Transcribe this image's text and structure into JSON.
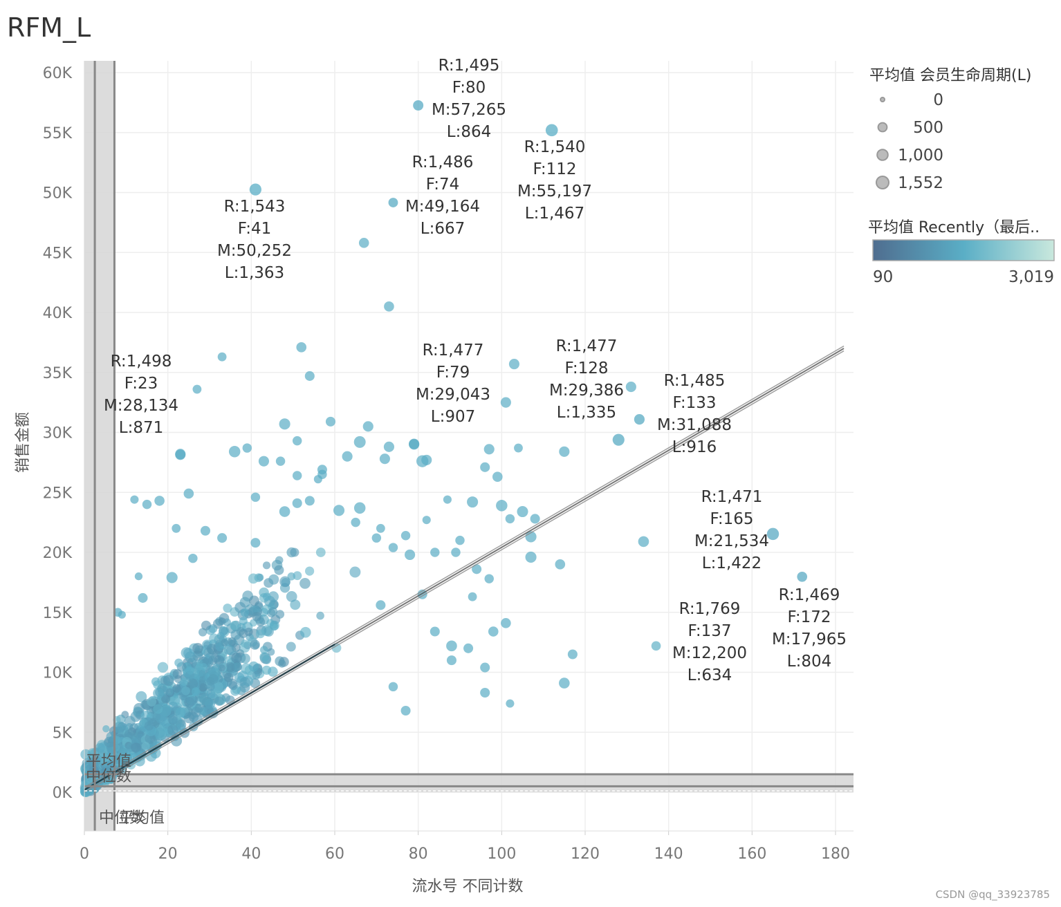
{
  "page": {
    "title": "RFM_L"
  },
  "chart_data": {
    "type": "scatter",
    "title": "RFM_L",
    "xlabel": "流水号 不同计数",
    "ylabel": "销售金额",
    "xlim": [
      0,
      182
    ],
    "ylim": [
      -3200,
      61000
    ],
    "x_ticks": [
      0,
      20,
      40,
      60,
      80,
      100,
      120,
      140,
      160,
      180
    ],
    "x_tick_labels": [
      "0",
      "20",
      "40",
      "60",
      "80",
      "100",
      "120",
      "140",
      "160",
      "180"
    ],
    "y_ticks": [
      0,
      5000,
      10000,
      15000,
      20000,
      25000,
      30000,
      35000,
      40000,
      45000,
      50000,
      55000,
      60000
    ],
    "y_tick_labels": [
      "0K",
      "5K",
      "10K",
      "15K",
      "20K",
      "25K",
      "30K",
      "35K",
      "40K",
      "45K",
      "50K",
      "55K",
      "60K"
    ],
    "color": "#4aa3bd",
    "size_legend": {
      "title": "平均值 会员生命周期(L)",
      "items": [
        {
          "label": "0",
          "value": 0
        },
        {
          "label": "500",
          "value": 500
        },
        {
          "label": "1,000",
          "value": 1000
        },
        {
          "label": "1,552",
          "value": 1552
        }
      ]
    },
    "color_legend": {
      "title": "平均值 Recently（最后..",
      "min_label": "90",
      "max_label": "3,019",
      "min": 90,
      "max": 3019,
      "color_start": "#4f6d8f",
      "color_mid": "#5aaec6",
      "color_end": "#c9e8dd"
    },
    "trend_line": {
      "start": [
        0,
        200
      ],
      "end": [
        182,
        37000
      ]
    },
    "reference_lines": {
      "x_mean": 7.2,
      "x_median": 2.5,
      "x_band": [
        0,
        7.2
      ],
      "y_mean": 1500,
      "y_median": 500,
      "y_band": [
        0,
        1500
      ],
      "x_labels": [
        "中位数",
        "平均值"
      ],
      "y_labels": [
        "平均值",
        "中位数"
      ]
    },
    "labeled_points": [
      {
        "x": 80,
        "y": 57265,
        "R": 1495,
        "F": 80,
        "M": 57265,
        "L": 864,
        "recently": 1495,
        "lines": [
          "R:1,495",
          "F:80",
          "M:57,265",
          "L:864"
        ]
      },
      {
        "x": 112,
        "y": 55197,
        "R": 1540,
        "F": 112,
        "M": 55197,
        "L": 1467,
        "recently": 1540,
        "lines": [
          "R:1,540",
          "F:112",
          "M:55,197",
          "L:1,467"
        ]
      },
      {
        "x": 74,
        "y": 49164,
        "R": 1486,
        "F": 74,
        "M": 49164,
        "L": 667,
        "recently": 1486,
        "lines": [
          "R:1,486",
          "F:74",
          "M:49,164",
          "L:667"
        ]
      },
      {
        "x": 41,
        "y": 50252,
        "R": 1543,
        "F": 41,
        "M": 50252,
        "L": 1363,
        "recently": 1543,
        "lines": [
          "R:1,543",
          "F:41",
          "M:50,252",
          "L:1,363"
        ]
      },
      {
        "x": 23,
        "y": 28134,
        "R": 1498,
        "F": 23,
        "M": 28134,
        "L": 871,
        "recently": 1498,
        "lines": [
          "R:1,498",
          "F:23",
          "M:28,134",
          "L:871"
        ]
      },
      {
        "x": 79,
        "y": 29043,
        "R": 1477,
        "F": 79,
        "M": 29043,
        "L": 907,
        "recently": 1477,
        "lines": [
          "R:1,477",
          "F:79",
          "M:29,043",
          "L:907"
        ]
      },
      {
        "x": 128,
        "y": 29386,
        "R": 1477,
        "F": 128,
        "M": 29386,
        "L": 1335,
        "recently": 1477,
        "lines": [
          "R:1,477",
          "F:128",
          "M:29,386",
          "L:1,335"
        ]
      },
      {
        "x": 133,
        "y": 31088,
        "R": 1485,
        "F": 133,
        "M": 31088,
        "L": 916,
        "recently": 1485,
        "lines": [
          "R:1,485",
          "F:133",
          "M:31,088",
          "L:916"
        ]
      },
      {
        "x": 165,
        "y": 21534,
        "R": 1471,
        "F": 165,
        "M": 21534,
        "L": 1422,
        "recently": 1471,
        "lines": [
          "R:1,471",
          "F:165",
          "M:21,534",
          "L:1,422"
        ]
      },
      {
        "x": 137,
        "y": 12200,
        "R": 1769,
        "F": 137,
        "M": 12200,
        "L": 634,
        "recently": 1769,
        "lines": [
          "R:1,769",
          "F:137",
          "M:12,200",
          "L:634"
        ]
      },
      {
        "x": 172,
        "y": 17965,
        "R": 1469,
        "F": 172,
        "M": 17965,
        "L": 804,
        "recently": 1469,
        "lines": [
          "R:1,469",
          "F:172",
          "M:17,965",
          "L:804"
        ]
      }
    ],
    "points": [
      {
        "x": 67,
        "y": 45800,
        "L": 800,
        "recently": 1500
      },
      {
        "x": 73,
        "y": 40500,
        "L": 800,
        "recently": 1500
      },
      {
        "x": 52,
        "y": 37100,
        "L": 800,
        "recently": 1500
      },
      {
        "x": 33,
        "y": 36300,
        "L": 500,
        "recently": 1500
      },
      {
        "x": 54,
        "y": 34700,
        "L": 700,
        "recently": 1500
      },
      {
        "x": 27,
        "y": 33600,
        "L": 500,
        "recently": 1500
      },
      {
        "x": 103,
        "y": 35700,
        "L": 900,
        "recently": 1500
      },
      {
        "x": 101,
        "y": 32500,
        "L": 900,
        "recently": 1500
      },
      {
        "x": 131,
        "y": 33800,
        "L": 900,
        "recently": 1500
      },
      {
        "x": 59,
        "y": 30900,
        "L": 700,
        "recently": 1500
      },
      {
        "x": 68,
        "y": 30500,
        "L": 900,
        "recently": 1500
      },
      {
        "x": 48,
        "y": 30700,
        "L": 1100,
        "recently": 1500
      },
      {
        "x": 51,
        "y": 29300,
        "L": 600,
        "recently": 1500
      },
      {
        "x": 66,
        "y": 29200,
        "L": 1300,
        "recently": 1500
      },
      {
        "x": 73,
        "y": 28800,
        "L": 900,
        "recently": 1500
      },
      {
        "x": 79,
        "y": 29000,
        "L": 900,
        "recently": 1500
      },
      {
        "x": 39,
        "y": 28700,
        "L": 600,
        "recently": 1500
      },
      {
        "x": 36,
        "y": 28400,
        "L": 1200,
        "recently": 1500
      },
      {
        "x": 23,
        "y": 28200,
        "L": 900,
        "recently": 1500
      },
      {
        "x": 97,
        "y": 28600,
        "L": 900,
        "recently": 1500
      },
      {
        "x": 104,
        "y": 28700,
        "L": 500,
        "recently": 1500
      },
      {
        "x": 115,
        "y": 28400,
        "L": 900,
        "recently": 1500
      },
      {
        "x": 63,
        "y": 28000,
        "L": 900,
        "recently": 1500
      },
      {
        "x": 72,
        "y": 27800,
        "L": 900,
        "recently": 1500
      },
      {
        "x": 81,
        "y": 27600,
        "L": 1400,
        "recently": 1500
      },
      {
        "x": 82,
        "y": 27700,
        "L": 900,
        "recently": 1500
      },
      {
        "x": 43,
        "y": 27600,
        "L": 900,
        "recently": 1500
      },
      {
        "x": 47,
        "y": 27600,
        "L": 600,
        "recently": 1500
      },
      {
        "x": 57,
        "y": 26900,
        "L": 700,
        "recently": 1500
      },
      {
        "x": 57,
        "y": 26500,
        "L": 600,
        "recently": 1500
      },
      {
        "x": 51,
        "y": 26400,
        "L": 600,
        "recently": 1500
      },
      {
        "x": 56,
        "y": 26100,
        "L": 400,
        "recently": 1500
      },
      {
        "x": 96,
        "y": 27100,
        "L": 700,
        "recently": 1500
      },
      {
        "x": 99,
        "y": 26300,
        "L": 800,
        "recently": 1500
      },
      {
        "x": 41,
        "y": 24600,
        "L": 600,
        "recently": 1500
      },
      {
        "x": 25,
        "y": 24900,
        "L": 800,
        "recently": 1500
      },
      {
        "x": 18,
        "y": 24300,
        "L": 800,
        "recently": 1500
      },
      {
        "x": 15,
        "y": 24000,
        "L": 600,
        "recently": 1500
      },
      {
        "x": 12,
        "y": 24400,
        "L": 400,
        "recently": 1500
      },
      {
        "x": 87,
        "y": 24400,
        "L": 400,
        "recently": 1500
      },
      {
        "x": 93,
        "y": 24200,
        "L": 1100,
        "recently": 1500
      },
      {
        "x": 100,
        "y": 23900,
        "L": 1200,
        "recently": 1500
      },
      {
        "x": 105,
        "y": 23400,
        "L": 1100,
        "recently": 1500
      },
      {
        "x": 102,
        "y": 22800,
        "L": 600,
        "recently": 1500
      },
      {
        "x": 108,
        "y": 22800,
        "L": 700,
        "recently": 1500
      },
      {
        "x": 54,
        "y": 24300,
        "L": 700,
        "recently": 1500
      },
      {
        "x": 51,
        "y": 24100,
        "L": 700,
        "recently": 1500
      },
      {
        "x": 48,
        "y": 23400,
        "L": 1000,
        "recently": 1500
      },
      {
        "x": 61,
        "y": 23500,
        "L": 1100,
        "recently": 1500
      },
      {
        "x": 66,
        "y": 23700,
        "L": 1200,
        "recently": 1500
      },
      {
        "x": 65,
        "y": 22500,
        "L": 600,
        "recently": 1500
      },
      {
        "x": 107,
        "y": 21300,
        "L": 1100,
        "recently": 1500
      },
      {
        "x": 107,
        "y": 19600,
        "L": 1100,
        "recently": 1500
      },
      {
        "x": 134,
        "y": 20900,
        "L": 1000,
        "recently": 1500
      },
      {
        "x": 114,
        "y": 19000,
        "L": 800,
        "recently": 1500
      },
      {
        "x": 94,
        "y": 18600,
        "L": 700,
        "recently": 1500
      },
      {
        "x": 97,
        "y": 17800,
        "L": 600,
        "recently": 1500
      },
      {
        "x": 81,
        "y": 16500,
        "L": 700,
        "recently": 1500
      },
      {
        "x": 93,
        "y": 16300,
        "L": 500,
        "recently": 1500
      },
      {
        "x": 117,
        "y": 11500,
        "L": 700,
        "recently": 1500
      },
      {
        "x": 115,
        "y": 9100,
        "L": 1000,
        "recently": 1500
      },
      {
        "x": 102,
        "y": 7400,
        "L": 400,
        "recently": 1500
      },
      {
        "x": 96,
        "y": 10400,
        "L": 700,
        "recently": 1500
      },
      {
        "x": 96,
        "y": 8300,
        "L": 700,
        "recently": 1500
      },
      {
        "x": 101,
        "y": 14100,
        "L": 800,
        "recently": 1500
      },
      {
        "x": 98,
        "y": 13400,
        "L": 800,
        "recently": 1500
      },
      {
        "x": 92,
        "y": 12000,
        "L": 700,
        "recently": 1500
      },
      {
        "x": 88,
        "y": 12200,
        "L": 1000,
        "recently": 1500
      },
      {
        "x": 84,
        "y": 13400,
        "L": 700,
        "recently": 1500
      },
      {
        "x": 88,
        "y": 11000,
        "L": 700,
        "recently": 1500
      },
      {
        "x": 77,
        "y": 6800,
        "L": 700,
        "recently": 1500
      },
      {
        "x": 74,
        "y": 8800,
        "L": 600,
        "recently": 1500
      },
      {
        "x": 71,
        "y": 15600,
        "L": 700,
        "recently": 1500
      },
      {
        "x": 78,
        "y": 19800,
        "L": 900,
        "recently": 1500
      },
      {
        "x": 84,
        "y": 20000,
        "L": 600,
        "recently": 1500
      },
      {
        "x": 89,
        "y": 20000,
        "L": 600,
        "recently": 1500
      },
      {
        "x": 90,
        "y": 21000,
        "L": 600,
        "recently": 1500
      },
      {
        "x": 82,
        "y": 22700,
        "L": 400,
        "recently": 1500
      },
      {
        "x": 77,
        "y": 21400,
        "L": 600,
        "recently": 1500
      },
      {
        "x": 74,
        "y": 20400,
        "L": 600,
        "recently": 1500
      },
      {
        "x": 70,
        "y": 21200,
        "L": 600,
        "recently": 1500
      },
      {
        "x": 71,
        "y": 22000,
        "L": 500,
        "recently": 1500
      },
      {
        "x": 33,
        "y": 21200,
        "L": 700,
        "recently": 1500
      },
      {
        "x": 29,
        "y": 21800,
        "L": 700,
        "recently": 1500
      },
      {
        "x": 41,
        "y": 20800,
        "L": 700,
        "recently": 1500
      },
      {
        "x": 21,
        "y": 17900,
        "L": 1100,
        "recently": 1500
      },
      {
        "x": 14,
        "y": 16200,
        "L": 700,
        "recently": 1500
      },
      {
        "x": 8,
        "y": 15000,
        "L": 500,
        "recently": 1500
      },
      {
        "x": 13,
        "y": 18000,
        "L": 300,
        "recently": 1500
      },
      {
        "x": 22,
        "y": 22000,
        "L": 500,
        "recently": 1500
      },
      {
        "x": 26,
        "y": 19500,
        "L": 600,
        "recently": 1500
      },
      {
        "x": 9,
        "y": 14800,
        "L": 300,
        "recently": 1500
      }
    ],
    "cluster": {
      "description": "dense cloud of small points concentrated at low counts",
      "x_range": [
        0,
        80
      ],
      "y_range": [
        0,
        20000
      ],
      "count": 1100
    }
  },
  "credit": "CSDN @qq_33923785"
}
